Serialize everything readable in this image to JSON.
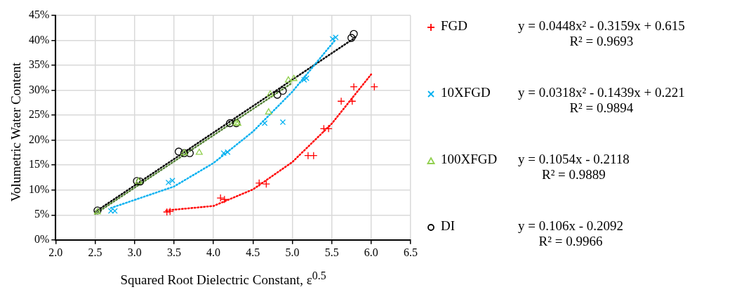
{
  "chart_data": {
    "type": "scatter",
    "xlabel": "Squared Root Dielectric Constant, ε$^{0.5}$",
    "ylabel": "Volumetric Water Content",
    "xlim": [
      2,
      6.5
    ],
    "xticks": [
      {
        "value": 2,
        "label": "2.0"
      },
      {
        "value": 2.5,
        "label": "2.5"
      },
      {
        "value": 3,
        "label": "3.0"
      },
      {
        "value": 3.5,
        "label": "3.5"
      },
      {
        "value": 4,
        "label": "4.0"
      },
      {
        "value": 4.5,
        "label": "4.5"
      },
      {
        "value": 5,
        "label": "5.0"
      },
      {
        "value": 5.5,
        "label": "5.5"
      },
      {
        "value": 6,
        "label": "6.0"
      },
      {
        "value": 6.5,
        "label": "6.5"
      }
    ],
    "ylim": [
      0,
      0.45
    ],
    "yticks": [
      {
        "value": 0,
        "label": "0%"
      },
      {
        "value": 0.05,
        "label": "5%"
      },
      {
        "value": 0.1,
        "label": "10%"
      },
      {
        "value": 0.15,
        "label": "15%"
      },
      {
        "value": 0.2,
        "label": "20%"
      },
      {
        "value": 0.25,
        "label": "25%"
      },
      {
        "value": 0.3,
        "label": "30%"
      },
      {
        "value": 0.35,
        "label": "35%"
      },
      {
        "value": 0.4,
        "label": "40%"
      },
      {
        "value": 0.45,
        "label": "45%"
      }
    ],
    "grid": true,
    "legend": "right",
    "annotations": [
      "y = 0.0448x² - 0.3159x + 0.615",
      "R² = 0.9693",
      "y = 0.0318x² - 0.1439x + 0.221",
      "R² = 0.9894",
      "y = 0.1054x - 0.2118",
      "R² = 0.9889",
      "y = 0.106x - 0.2092",
      "R² = 0.9966"
    ],
    "series": [
      {
        "name": "FGD",
        "type": "scatter",
        "marker": "cross",
        "color": "#ff0000",
        "x": [
          3.41,
          3.45,
          4.09,
          4.14,
          4.58,
          4.67,
          5.2,
          5.27,
          5.4,
          5.46,
          5.62,
          5.76,
          5.78,
          6.04
        ],
        "values": [
          0.056,
          0.057,
          0.084,
          0.081,
          0.114,
          0.112,
          0.169,
          0.169,
          0.223,
          0.223,
          0.278,
          0.278,
          0.307,
          0.307
        ]
      },
      {
        "name": "10XFGD",
        "type": "scatter",
        "marker": "x",
        "color": "#00b0f0",
        "x": [
          2.7,
          2.75,
          3.43,
          3.48,
          4.13,
          4.18,
          4.65,
          4.88,
          5.15,
          5.18,
          5.51,
          5.55
        ],
        "values": [
          0.058,
          0.058,
          0.115,
          0.119,
          0.174,
          0.176,
          0.234,
          0.236,
          0.321,
          0.324,
          0.403,
          0.406
        ]
      },
      {
        "name": "100XFGD",
        "type": "scatter",
        "marker": "triangle",
        "color": "#92d050",
        "x": [
          2.53,
          3.05,
          3.63,
          3.82,
          4.29,
          4.31,
          4.7,
          4.72,
          4.95,
          5.02
        ],
        "values": [
          0.056,
          0.117,
          0.174,
          0.175,
          0.234,
          0.233,
          0.256,
          0.292,
          0.32,
          0.323
        ]
      },
      {
        "name": "DI",
        "type": "scatter",
        "marker": "circle",
        "color": "#000000",
        "x": [
          2.53,
          3.03,
          3.07,
          3.56,
          3.63,
          3.7,
          4.21,
          4.29,
          4.81,
          4.88,
          5.75,
          5.78
        ],
        "values": [
          0.059,
          0.118,
          0.117,
          0.177,
          0.174,
          0.174,
          0.234,
          0.234,
          0.291,
          0.299,
          0.405,
          0.413
        ]
      },
      {
        "type": "line",
        "line_style": "dotted",
        "marker": "none",
        "color": "#ff0000",
        "x": [
          3.4,
          4,
          4.5,
          5,
          5.5,
          6
        ],
        "values": [
          0.059,
          0.068,
          0.101,
          0.156,
          0.233,
          0.332
        ]
      },
      {
        "type": "line",
        "line_style": "dotted",
        "marker": "none",
        "color": "#00b0f0",
        "x": [
          2.7,
          3.5,
          4,
          4.5,
          5,
          5.55
        ],
        "values": [
          0.064,
          0.107,
          0.154,
          0.217,
          0.297,
          0.402
        ]
      },
      {
        "type": "line",
        "line_style": "dotted",
        "marker": "none",
        "color": "#548235",
        "x": [
          2.5,
          5
        ],
        "values": [
          0.052,
          0.315
        ]
      },
      {
        "type": "line",
        "line_style": "dotted",
        "marker": "none",
        "color": "#000000",
        "x": [
          2.5,
          5.8
        ],
        "values": [
          0.056,
          0.406
        ]
      }
    ]
  }
}
